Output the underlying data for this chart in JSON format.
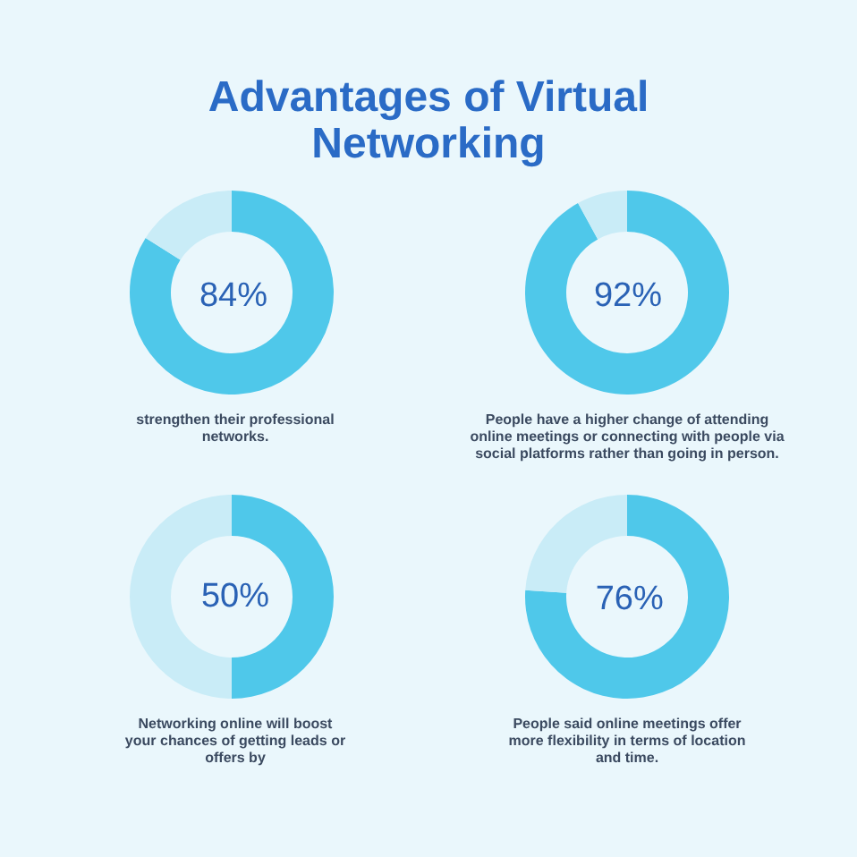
{
  "chart_data": [
    {
      "type": "donut",
      "title": "Advantages of Virtual Networking",
      "categories": [
        null,
        null
      ],
      "values": [
        84,
        16
      ],
      "colors": [
        "#4fc8ea",
        "#c9ecf7"
      ],
      "value_labels": [
        "84%",
        null
      ],
      "annotations": [
        "strengthen their professional networks."
      ]
    },
    {
      "type": "donut",
      "categories": [
        null,
        null
      ],
      "values": [
        92,
        8
      ],
      "colors": [
        "#4fc8ea",
        "#c9ecf7"
      ],
      "value_labels": [
        "92%",
        null
      ],
      "annotations": [
        "People have a higher change of attending online meetings or connecting with people via social platforms rather than going in person."
      ]
    },
    {
      "type": "donut",
      "categories": [
        null,
        null
      ],
      "values": [
        50,
        50
      ],
      "colors": [
        "#4fc8ea",
        "#c9ecf7"
      ],
      "value_labels": [
        "50%",
        null
      ],
      "annotations": [
        "Networking online will boost your chances of getting leads or offers by"
      ]
    },
    {
      "type": "donut",
      "categories": [
        null,
        null
      ],
      "values": [
        76,
        24
      ],
      "colors": [
        "#4fc8ea",
        "#c9ecf7"
      ],
      "value_labels": [
        "76%",
        null
      ],
      "annotations": [
        "People said online meetings offer more flexibility in terms of location and time."
      ]
    }
  ]
}
